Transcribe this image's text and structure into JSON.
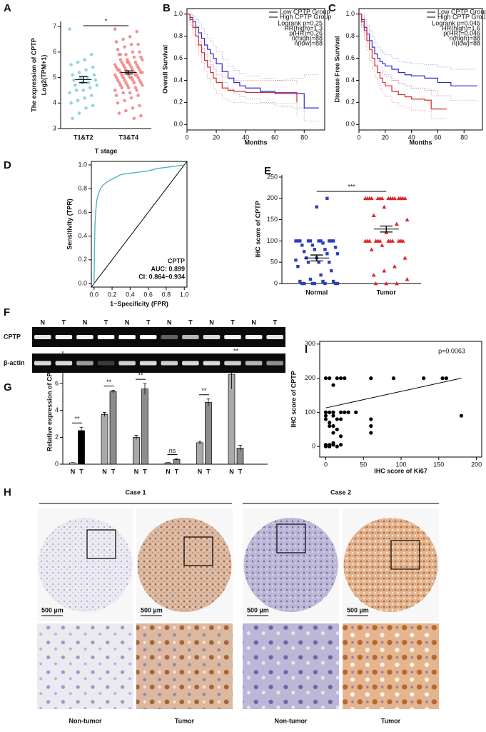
{
  "chart_data": [
    {
      "panel": "A",
      "type": "dot",
      "ylabel": [
        "The expression of CPTP",
        "Log2(TPM+1)"
      ],
      "xlabel": "T stage",
      "categories": [
        "T1&T2",
        "T3&T4"
      ],
      "significance": "*",
      "ylim": [
        3,
        7.2
      ],
      "yticks": [
        3,
        4,
        5,
        6,
        7
      ],
      "groups": [
        {
          "color": "#7fcbe0",
          "marker": "circle",
          "mean": 4.92,
          "sem": 0.12,
          "values": [
            6.9,
            5.9,
            5.7,
            5.6,
            5.5,
            5.4,
            5.3,
            5.2,
            5.1,
            5.1,
            5.0,
            5.0,
            4.9,
            4.9,
            4.8,
            4.8,
            4.7,
            4.7,
            4.6,
            4.5,
            4.5,
            4.4,
            4.3,
            4.2,
            4.1,
            4.0,
            3.9,
            3.8,
            3.6,
            3.4
          ]
        },
        {
          "color": "#f07f7f",
          "marker": "circle",
          "mean": 5.2,
          "sem": 0.06,
          "values": [
            6.9,
            6.8,
            6.6,
            6.5,
            6.4,
            6.3,
            6.3,
            6.2,
            6.1,
            6.0,
            6.0,
            5.9,
            5.9,
            5.8,
            5.8,
            5.7,
            5.7,
            5.7,
            5.6,
            5.6,
            5.6,
            5.5,
            5.5,
            5.5,
            5.5,
            5.4,
            5.4,
            5.4,
            5.4,
            5.3,
            5.3,
            5.3,
            5.3,
            5.3,
            5.2,
            5.2,
            5.2,
            5.2,
            5.2,
            5.1,
            5.1,
            5.1,
            5.1,
            5.1,
            5.0,
            5.0,
            5.0,
            5.0,
            5.0,
            4.9,
            4.9,
            4.9,
            4.9,
            4.8,
            4.8,
            4.8,
            4.8,
            4.7,
            4.7,
            4.7,
            4.6,
            4.6,
            4.6,
            4.5,
            4.5,
            4.4,
            4.4,
            4.3,
            4.3,
            4.2,
            4.1,
            4.0,
            3.9,
            3.8,
            3.7,
            3.6,
            3.5,
            3.4,
            5.6,
            5.9
          ]
        }
      ]
    },
    {
      "panel": "B",
      "type": "km",
      "ylabel": "Overall Survival",
      "xlabel": "Months",
      "frame": true,
      "legend": "top right",
      "xlim": [
        0,
        94
      ],
      "xticks": [
        0,
        20,
        40,
        60,
        80
      ],
      "ylim": [
        -0.05,
        1.05
      ],
      "yticks": [
        {
          "value": 0,
          "label": "0.0"
        },
        0.2,
        0.4,
        0.6,
        0.8,
        {
          "value": 1,
          "label": "1.0"
        }
      ],
      "stats": [
        "Logrank p=0.25",
        "HR(high)=1.3",
        "p(HR)=0.26",
        "n(high)=88",
        "n(low)=88"
      ],
      "series": [
        {
          "name": "Low CPTP Group",
          "color": "#2b2bd6",
          "x": [
            0,
            2,
            4,
            6,
            8,
            10,
            12,
            14,
            16,
            18,
            20,
            24,
            28,
            32,
            36,
            40,
            50,
            60,
            65,
            72,
            80,
            90
          ],
          "values": [
            1,
            0.97,
            0.93,
            0.88,
            0.83,
            0.78,
            0.72,
            0.68,
            0.64,
            0.6,
            0.55,
            0.48,
            0.42,
            0.38,
            0.35,
            0.33,
            0.3,
            0.28,
            0.28,
            0.28,
            0.15,
            0.15
          ],
          "ci_low": [
            1,
            0.93,
            0.87,
            0.81,
            0.75,
            0.69,
            0.63,
            0.58,
            0.54,
            0.5,
            0.45,
            0.38,
            0.32,
            0.28,
            0.25,
            0.23,
            0.2,
            0.17,
            0.16,
            0.15,
            0.03,
            0.03
          ],
          "ci_high": [
            1,
            1,
            0.98,
            0.95,
            0.91,
            0.87,
            0.82,
            0.78,
            0.75,
            0.71,
            0.66,
            0.59,
            0.53,
            0.49,
            0.46,
            0.44,
            0.42,
            0.4,
            0.41,
            0.42,
            0.45,
            0.45
          ]
        },
        {
          "name": "High CPTP Group",
          "color": "#d62b2b",
          "x": [
            0,
            2,
            4,
            6,
            8,
            10,
            12,
            14,
            16,
            18,
            20,
            24,
            28,
            32,
            40,
            50,
            60,
            70,
            75
          ],
          "values": [
            1,
            0.95,
            0.88,
            0.8,
            0.72,
            0.65,
            0.58,
            0.52,
            0.47,
            0.42,
            0.38,
            0.33,
            0.31,
            0.3,
            0.29,
            0.29,
            0.29,
            0.29,
            0.2
          ],
          "ci_low": [
            1,
            0.9,
            0.81,
            0.72,
            0.63,
            0.56,
            0.48,
            0.42,
            0.37,
            0.32,
            0.28,
            0.23,
            0.21,
            0.2,
            0.19,
            0.19,
            0.19,
            0.19,
            0.08
          ],
          "ci_high": [
            1,
            0.99,
            0.95,
            0.88,
            0.81,
            0.75,
            0.68,
            0.62,
            0.57,
            0.52,
            0.48,
            0.43,
            0.41,
            0.4,
            0.4,
            0.4,
            0.4,
            0.4,
            0.36
          ]
        }
      ]
    },
    {
      "panel": "C",
      "type": "km",
      "ylabel": "Disease Free Survival",
      "xlabel": "Months",
      "frame": true,
      "legend": "top right",
      "xlim": [
        0,
        94
      ],
      "xticks": [
        0,
        20,
        40,
        60,
        80
      ],
      "ylim": [
        -0.05,
        1.05
      ],
      "yticks": [
        {
          "value": 0,
          "label": "0.0"
        },
        0.2,
        0.4,
        0.6,
        0.8,
        {
          "value": 1,
          "label": "1.0"
        }
      ],
      "stats": [
        "Logrank p=0.045",
        "HR(high)=1.6",
        "p(HR)=0.046",
        "n(high)=88",
        "n(low)=88"
      ],
      "series": [
        {
          "name": "Low CPTP Group",
          "color": "#2b2bd6",
          "x": [
            0,
            2,
            4,
            6,
            8,
            10,
            12,
            14,
            16,
            18,
            20,
            25,
            30,
            35,
            40,
            50,
            60,
            70,
            80,
            90
          ],
          "values": [
            1,
            0.95,
            0.88,
            0.82,
            0.76,
            0.7,
            0.64,
            0.6,
            0.57,
            0.55,
            0.53,
            0.5,
            0.47,
            0.45,
            0.44,
            0.42,
            0.38,
            0.35,
            0.35,
            0.35
          ],
          "ci_low": [
            1,
            0.9,
            0.81,
            0.74,
            0.67,
            0.6,
            0.54,
            0.5,
            0.47,
            0.45,
            0.43,
            0.4,
            0.37,
            0.35,
            0.33,
            0.31,
            0.26,
            0.22,
            0.22,
            0.22
          ],
          "ci_high": [
            1,
            1,
            0.95,
            0.9,
            0.85,
            0.8,
            0.74,
            0.7,
            0.67,
            0.65,
            0.63,
            0.6,
            0.57,
            0.56,
            0.55,
            0.54,
            0.52,
            0.5,
            0.5,
            0.5
          ]
        },
        {
          "name": "High CPTP Group",
          "color": "#d62b2b",
          "x": [
            0,
            2,
            4,
            6,
            8,
            10,
            12,
            14,
            16,
            18,
            20,
            25,
            30,
            35,
            40,
            50,
            55,
            60,
            67
          ],
          "values": [
            1,
            0.93,
            0.85,
            0.76,
            0.68,
            0.6,
            0.53,
            0.47,
            0.42,
            0.38,
            0.35,
            0.3,
            0.27,
            0.25,
            0.23,
            0.22,
            0.14,
            0.14,
            0.14
          ],
          "ci_low": [
            1,
            0.88,
            0.77,
            0.67,
            0.58,
            0.5,
            0.43,
            0.37,
            0.32,
            0.28,
            0.25,
            0.2,
            0.17,
            0.15,
            0.13,
            0.12,
            0.05,
            0.05,
            0.05
          ],
          "ci_high": [
            1,
            0.98,
            0.93,
            0.85,
            0.78,
            0.7,
            0.63,
            0.57,
            0.52,
            0.48,
            0.45,
            0.4,
            0.37,
            0.35,
            0.33,
            0.32,
            0.26,
            0.26,
            0.26
          ]
        }
      ]
    },
    {
      "panel": "D",
      "type": "roc",
      "ylabel": "Sensitivity (TPR)",
      "xlabel": "1−Specificity (FPR)",
      "frame": true,
      "color": "#4fb3bf",
      "xlim": [
        -0.03,
        1.03
      ],
      "xticks": [
        {
          "value": 0,
          "label": "0.0"
        },
        0.2,
        0.4,
        0.6,
        0.8,
        {
          "value": 1,
          "label": "1.0"
        }
      ],
      "ylim": [
        -0.03,
        1.03
      ],
      "yticks": [
        {
          "value": 0,
          "label": "0.0"
        },
        0.2,
        0.4,
        0.6,
        0.8,
        {
          "value": 1,
          "label": "1.0"
        }
      ],
      "annotations": [
        "CPTP",
        "AUC: 0.899",
        "CI: 0.864−0.934"
      ],
      "x": [
        0,
        0.005,
        0.01,
        0.02,
        0.03,
        0.05,
        0.07,
        0.1,
        0.15,
        0.2,
        0.25,
        0.3,
        0.4,
        0.5,
        0.6,
        0.7,
        0.8,
        0.9,
        1
      ],
      "values": [
        0,
        0.3,
        0.5,
        0.62,
        0.7,
        0.76,
        0.8,
        0.83,
        0.86,
        0.88,
        0.9,
        0.92,
        0.93,
        0.94,
        0.95,
        0.97,
        0.98,
        0.99,
        1
      ]
    },
    {
      "panel": "E",
      "type": "dot",
      "ylabel": "IHC score of CPTP",
      "categories": [
        "Normal",
        "Tumor"
      ],
      "significance": "***",
      "ylim": [
        0,
        255
      ],
      "yticks": [
        0,
        50,
        100,
        150,
        200,
        250
      ],
      "groups": [
        {
          "color": "#2a3fbf",
          "marker": "square",
          "mean": 60,
          "sem": 7,
          "values": [
            100,
            100,
            100,
            100,
            100,
            100,
            100,
            100,
            100,
            100,
            95,
            90,
            90,
            85,
            80,
            80,
            75,
            70,
            70,
            60,
            60,
            55,
            50,
            50,
            50,
            40,
            30,
            20,
            10,
            5,
            5,
            5,
            0,
            0,
            0,
            0,
            0,
            0,
            0,
            200,
            180
          ]
        },
        {
          "color": "#e0262b",
          "marker": "triangle",
          "mean": 128,
          "sem": 7,
          "values": [
            200,
            200,
            200,
            200,
            200,
            200,
            200,
            200,
            200,
            200,
            200,
            200,
            200,
            200,
            200,
            180,
            160,
            150,
            140,
            120,
            100,
            100,
            100,
            100,
            100,
            100,
            100,
            100,
            100,
            100,
            100,
            100,
            90,
            80,
            60,
            40,
            30,
            20,
            10,
            0,
            0,
            0
          ]
        }
      ]
    },
    {
      "panel": "G",
      "type": "bar",
      "ylabel": "Relative expression of CPTP",
      "ylim": [
        0,
        8.4
      ],
      "yticks": [
        0,
        2,
        4,
        6,
        8
      ],
      "significance": [
        "**",
        "**",
        "**",
        "ns",
        "**",
        "**"
      ],
      "series": [
        {
          "name": "N",
          "colors": [
            "#ffffff",
            "#a9a9a9",
            "#a9a9a9",
            "#a9a9a9",
            "#a9a9a9",
            "#a9a9a9"
          ],
          "values": [
            0.1,
            3.7,
            2,
            0.1,
            1.6,
            6.7
          ],
          "errors": [
            0.02,
            0.15,
            0.15,
            0.02,
            0.1,
            1.1
          ]
        },
        {
          "name": "T",
          "colors": [
            "#000000",
            "#8c8c8c",
            "#8c8c8c",
            "#8c8c8c",
            "#8c8c8c",
            "#8c8c8c"
          ],
          "values": [
            2.5,
            5.4,
            5.6,
            0.35,
            4.6,
            1.2
          ],
          "errors": [
            0.25,
            0.1,
            0.4,
            0.05,
            0.25,
            0.2
          ]
        }
      ]
    },
    {
      "panel": "I",
      "type": "scatter",
      "ylabel": "IHC score of CPTP",
      "xlabel": "IHC score of Ki67",
      "frame": true,
      "annotation": "p=0.0063",
      "xlim": [
        -8,
        207
      ],
      "xticks": [
        0,
        50,
        100,
        150,
        200
      ],
      "ylim": [
        -31,
        308
      ],
      "yticks": [
        0,
        100,
        200,
        300
      ],
      "x": [
        0,
        0,
        0,
        0,
        5,
        5,
        10,
        10,
        10,
        15,
        20,
        20,
        25,
        0,
        5,
        10,
        15,
        20,
        30,
        40,
        60,
        60,
        60,
        0,
        5,
        10,
        15,
        20,
        25,
        60,
        90,
        130,
        155,
        160,
        0,
        5,
        10,
        15,
        20,
        180,
        10,
        5
      ],
      "values": [
        100,
        100,
        90,
        80,
        100,
        70,
        100,
        90,
        60,
        50,
        100,
        80,
        100,
        5,
        5,
        10,
        0,
        5,
        100,
        100,
        40,
        60,
        80,
        200,
        200,
        180,
        200,
        200,
        200,
        200,
        200,
        200,
        200,
        200,
        0,
        0,
        5,
        80,
        30,
        90,
        40,
        60
      ],
      "fit": {
        "x": [
          0,
          180
        ],
        "y": [
          113,
          200
        ]
      }
    }
  ],
  "gel": {
    "panel": "F",
    "lanes": [
      "N",
      "T",
      "N",
      "T",
      "N",
      "T",
      "N",
      "T",
      "N",
      "T",
      "N",
      "T"
    ],
    "rows": [
      "CPTP",
      "β-actin"
    ]
  },
  "histology": {
    "panel": "H",
    "cases": [
      "Case 1",
      "Case 2"
    ],
    "scale_bar": "500 µm",
    "labels": [
      "Non-tumor",
      "Tumor",
      "Non-tumor",
      "Tumor"
    ]
  }
}
